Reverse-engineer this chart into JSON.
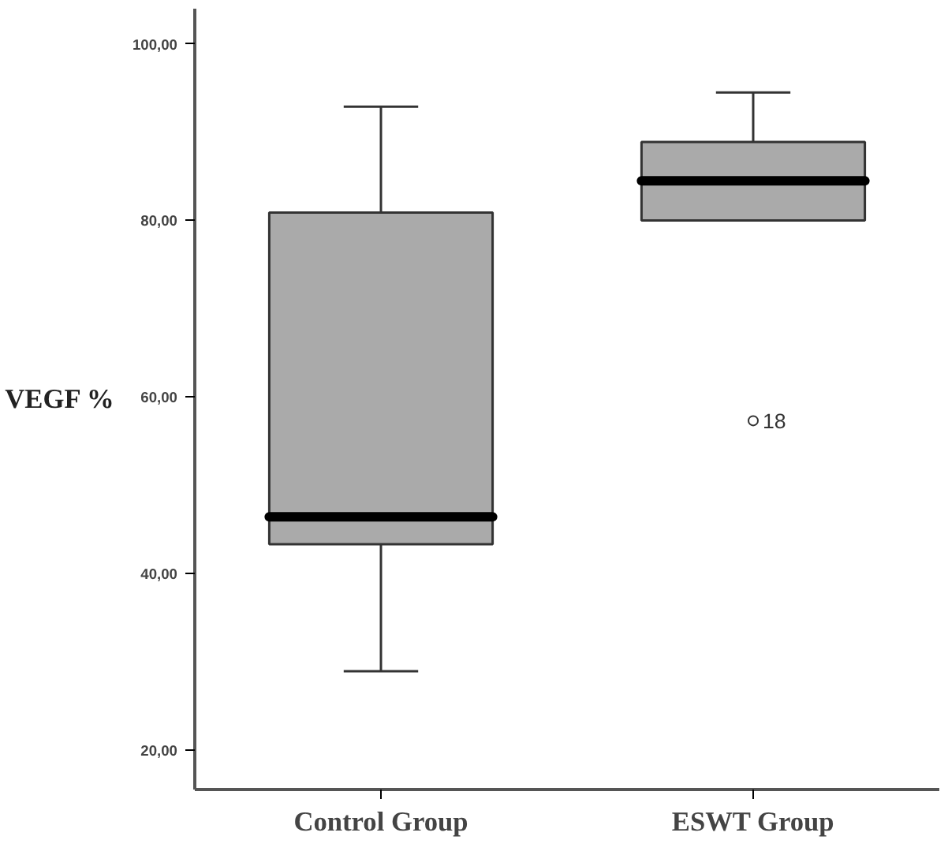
{
  "chart_data": {
    "type": "box",
    "ylabel": "VEGF %",
    "categories": [
      "Control Group",
      "ESWT Group"
    ],
    "boxes": [
      {
        "low": 28.9,
        "q1": 43.3,
        "median": 46.4,
        "q3": 80.9,
        "high": 92.9
      },
      {
        "low": 80.0,
        "q1": 80.0,
        "median": 84.5,
        "q3": 88.9,
        "high": 94.5,
        "outliers": [
          57.3
        ]
      }
    ],
    "color": "#aaaaaa",
    "annotations": [
      "18"
    ],
    "ylim": [
      15.5,
      104
    ],
    "yticks": [
      {
        "value": 20,
        "label": "20,00"
      },
      {
        "value": 40,
        "label": "40,00"
      },
      {
        "value": 60,
        "label": "60,00"
      },
      {
        "value": 80,
        "label": "80,00"
      },
      {
        "value": 100,
        "label": "100,00"
      }
    ],
    "grid": false
  }
}
